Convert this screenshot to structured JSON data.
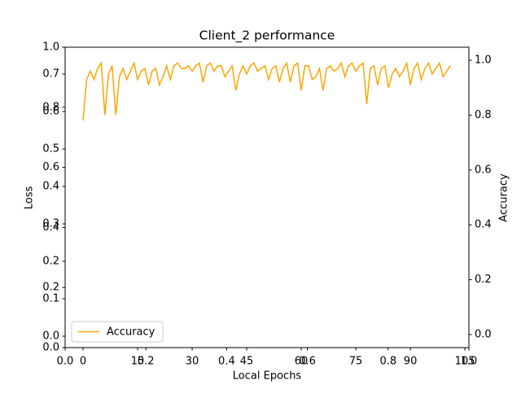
{
  "chart_data": {
    "type": "line",
    "title": "Client_2 performance",
    "xlabel": "Local Epochs",
    "ylabel": "Loss",
    "y2label": "Accuracy",
    "x": [
      0,
      1,
      2,
      3,
      4,
      5,
      6,
      7,
      8,
      9,
      10,
      11,
      12,
      13,
      14,
      15,
      16,
      17,
      18,
      19,
      20,
      21,
      22,
      23,
      24,
      25,
      26,
      27,
      28,
      29,
      30,
      31,
      32,
      33,
      34,
      35,
      36,
      37,
      38,
      39,
      40,
      41,
      42,
      43,
      44,
      45,
      46,
      47,
      48,
      49,
      50,
      51,
      52,
      53,
      54,
      55,
      56,
      57,
      58,
      59,
      60,
      61,
      62,
      63,
      64,
      65,
      66,
      67,
      68,
      69,
      70,
      71,
      72,
      73,
      74,
      75,
      76,
      77,
      78,
      79,
      80,
      81,
      82,
      83,
      84,
      85,
      86,
      87,
      88,
      89,
      90,
      91,
      92,
      93,
      94,
      95,
      96,
      97,
      98,
      99,
      100,
      101
    ],
    "series": [
      {
        "name": "Accuracy",
        "color": "orange",
        "axis": "y2",
        "values": [
          0.78,
          0.93,
          0.96,
          0.93,
          0.97,
          0.99,
          0.8,
          0.95,
          0.98,
          0.8,
          0.94,
          0.97,
          0.93,
          0.96,
          0.99,
          0.93,
          0.96,
          0.97,
          0.91,
          0.96,
          0.97,
          0.91,
          0.94,
          0.98,
          0.93,
          0.98,
          0.99,
          0.97,
          0.97,
          0.98,
          0.96,
          0.98,
          0.99,
          0.92,
          0.98,
          0.99,
          0.96,
          0.98,
          0.98,
          0.94,
          0.96,
          0.98,
          0.89,
          0.95,
          0.98,
          0.95,
          0.98,
          0.99,
          0.96,
          0.97,
          0.98,
          0.93,
          0.97,
          0.98,
          0.92,
          0.97,
          0.99,
          0.92,
          0.98,
          0.99,
          0.89,
          0.98,
          0.98,
          0.93,
          0.94,
          0.97,
          0.89,
          0.97,
          0.98,
          0.96,
          0.97,
          0.99,
          0.94,
          0.98,
          0.99,
          0.96,
          0.98,
          0.99,
          0.84,
          0.97,
          0.98,
          0.91,
          0.97,
          0.98,
          0.9,
          0.95,
          0.97,
          0.94,
          0.96,
          0.99,
          0.91,
          0.97,
          0.99,
          0.93,
          0.97,
          0.99,
          0.95,
          0.97,
          0.99,
          0.94,
          0.96,
          0.98
        ]
      }
    ],
    "xlim": [
      -4.93,
      106.1
    ],
    "xticks": [
      0,
      15,
      30,
      45,
      60,
      75,
      90,
      105
    ],
    "ylim": [
      -0.0304,
      0.7717
    ],
    "yticks": [
      {
        "value": 0,
        "label": "0.0"
      },
      0.1,
      0.2,
      0.3,
      0.4,
      0.5,
      0.6,
      0.7
    ],
    "y2lim": [
      -0.0476,
      1.0476
    ],
    "y2ticks": [
      {
        "value": 0,
        "label": "0.0"
      },
      0.2,
      0.4,
      0.6,
      0.8,
      {
        "value": 1,
        "label": "1.0"
      }
    ],
    "overlay_axis": {
      "xlim": [
        0,
        1
      ],
      "xticks": [
        {
          "value": 0,
          "label": "0.0"
        },
        0.2,
        0.4,
        0.6,
        0.8,
        {
          "value": 1,
          "label": "1.0"
        }
      ],
      "ylim": [
        0,
        1
      ],
      "yticks": [
        {
          "value": 0,
          "label": "0.0"
        },
        0.2,
        0.4,
        0.6,
        0.8,
        {
          "value": 1,
          "label": "1.0"
        }
      ]
    },
    "legend": "lower left"
  }
}
